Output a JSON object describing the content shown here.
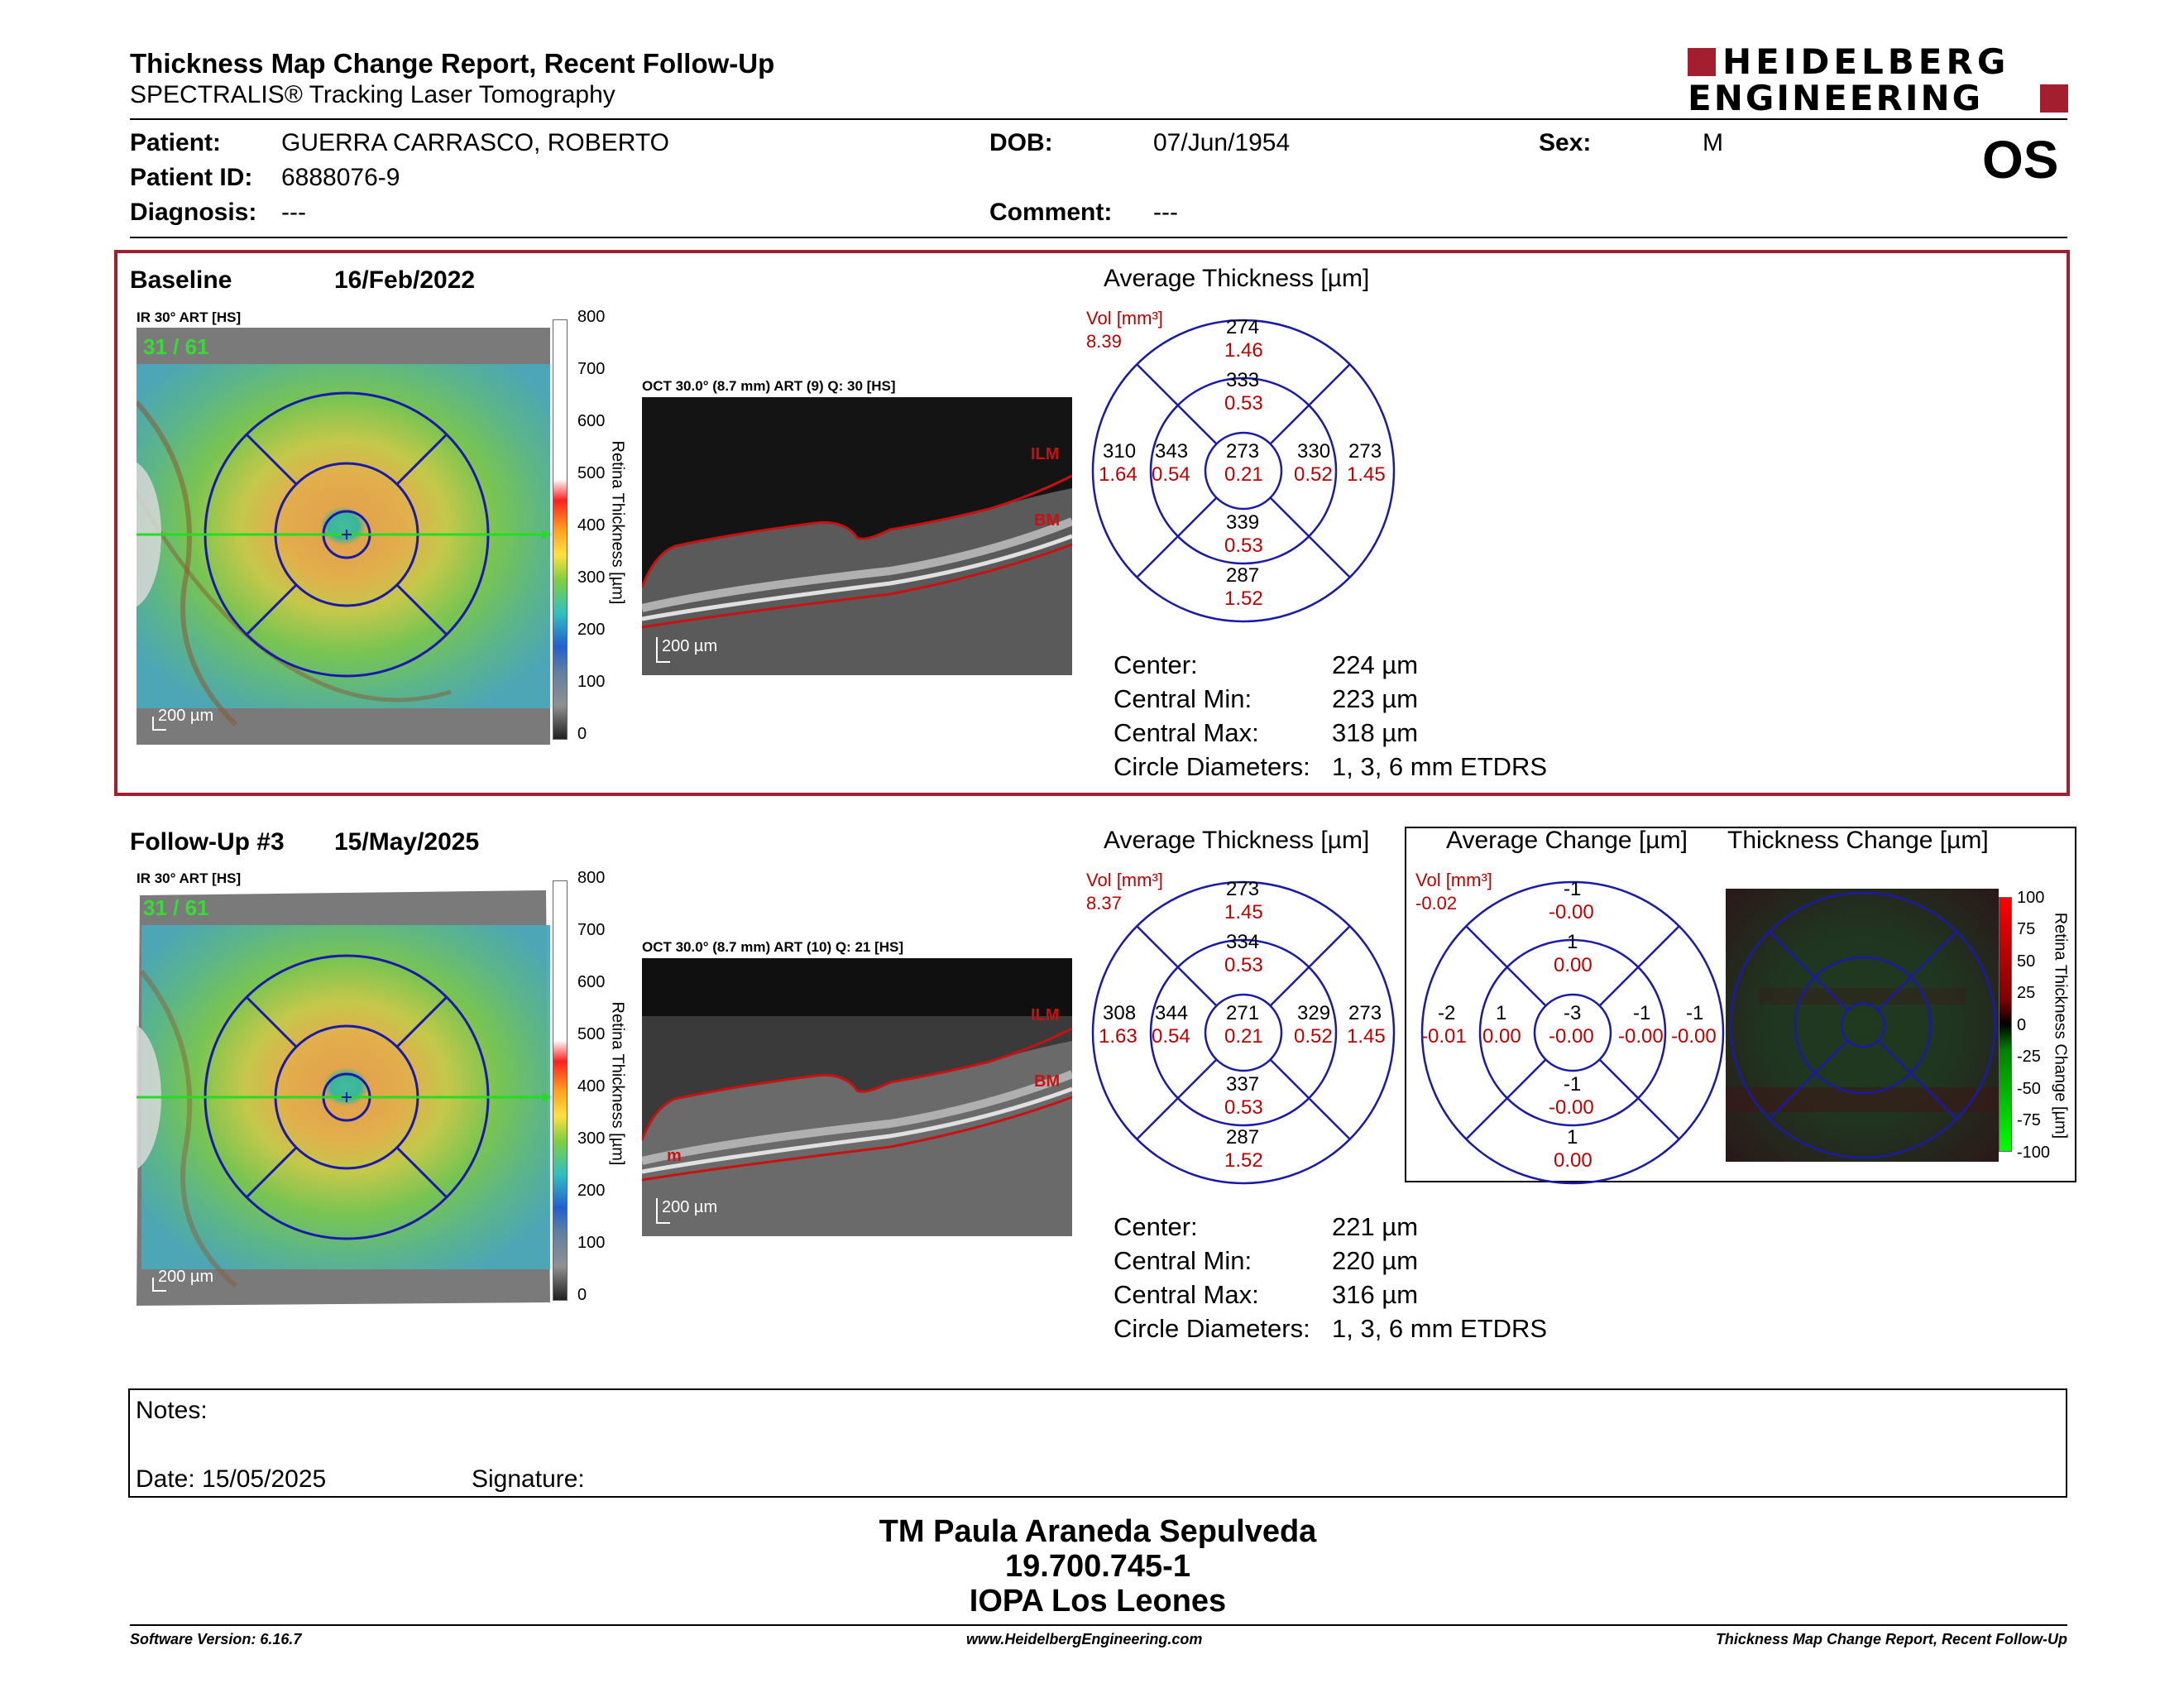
{
  "header": {
    "title": "Thickness Map Change Report, Recent Follow-Up",
    "subtitle": "SPECTRALIS® Tracking Laser Tomography",
    "logo_line1": "HEIDELBERG",
    "logo_line2": "ENGINEERING",
    "eye": "OS"
  },
  "patient": {
    "patient_label": "Patient:",
    "patient_value": "GUERRA CARRASCO, ROBERTO",
    "id_label": "Patient ID:",
    "id_value": "6888076-9",
    "diagnosis_label": "Diagnosis:",
    "diagnosis_value": "---",
    "dob_label": "DOB:",
    "dob_value": "07/Jun/1954",
    "comment_label": "Comment:",
    "comment_value": "---",
    "sex_label": "Sex:",
    "sex_value": "M"
  },
  "colors": {
    "accent_red": "#a31f2f",
    "grid_blue": "#1a1aa8",
    "value_red": "#c00000"
  },
  "baseline": {
    "label": "Baseline",
    "date": "16/Feb/2022",
    "ir_label": "IR 30° ART [HS]",
    "ir_overlay": "31 / 61",
    "scale_label": "200 µm",
    "oct_label": "OCT 30.0° (8.7 mm) ART (9) Q: 30 [HS]",
    "oct_scale": "200 µm",
    "ilm": "ILM",
    "bm": "BM",
    "avg_title": "Average Thickness [µm]",
    "vol_label": "Vol [mm³]",
    "vol_value": "8.39",
    "sectors": {
      "outer_top": [
        "274",
        "1.46"
      ],
      "inner_top": [
        "333",
        "0.53"
      ],
      "outer_left": [
        "310",
        "1.64"
      ],
      "inner_left": [
        "343",
        "0.54"
      ],
      "center": [
        "273",
        "0.21"
      ],
      "inner_right": [
        "330",
        "0.52"
      ],
      "outer_right": [
        "273",
        "1.45"
      ],
      "inner_bottom": [
        "339",
        "0.53"
      ],
      "outer_bottom": [
        "287",
        "1.52"
      ]
    },
    "stats": [
      {
        "label": "Center:",
        "value": "224 µm"
      },
      {
        "label": "Central Min:",
        "value": "223 µm"
      },
      {
        "label": "Central Max:",
        "value": "318 µm"
      },
      {
        "label": "Circle Diameters:",
        "value": "1, 3, 6 mm ETDRS"
      }
    ]
  },
  "followup": {
    "label": "Follow-Up #3",
    "date": "15/May/2025",
    "ir_label": "IR 30° ART [HS]",
    "ir_overlay": "31 / 61",
    "scale_label": "200 µm",
    "oct_label": "OCT 30.0° (8.7 mm) ART (10) Q: 21 [HS]",
    "oct_scale": "200 µm",
    "ilm": "ILM",
    "bm": "BM",
    "bm_mark": "m",
    "avg_title": "Average Thickness [µm]",
    "vol_label": "Vol [mm³]",
    "vol_value": "8.37",
    "sectors": {
      "outer_top": [
        "273",
        "1.45"
      ],
      "inner_top": [
        "334",
        "0.53"
      ],
      "outer_left": [
        "308",
        "1.63"
      ],
      "inner_left": [
        "344",
        "0.54"
      ],
      "center": [
        "271",
        "0.21"
      ],
      "inner_right": [
        "329",
        "0.52"
      ],
      "outer_right": [
        "273",
        "1.45"
      ],
      "inner_bottom": [
        "337",
        "0.53"
      ],
      "outer_bottom": [
        "287",
        "1.52"
      ]
    },
    "stats": [
      {
        "label": "Center:",
        "value": "221 µm"
      },
      {
        "label": "Central Min:",
        "value": "220 µm"
      },
      {
        "label": "Central Max:",
        "value": "316 µm"
      },
      {
        "label": "Circle Diameters:",
        "value": "1, 3, 6 mm ETDRS"
      }
    ]
  },
  "change": {
    "avg_change_title": "Average Change [µm]",
    "thickness_change_title": "Thickness Change [µm]",
    "vol_label": "Vol [mm³]",
    "vol_value": "-0.02",
    "sectors": {
      "outer_top": [
        "-1",
        "-0.00"
      ],
      "inner_top": [
        "1",
        "0.00"
      ],
      "outer_left": [
        "-2",
        "-0.01"
      ],
      "inner_left": [
        "1",
        "0.00"
      ],
      "center": [
        "-3",
        "-0.00"
      ],
      "inner_right": [
        "-1",
        "-0.00"
      ],
      "outer_right": [
        "-1",
        "-0.00"
      ],
      "inner_bottom": [
        "-1",
        "-0.00"
      ],
      "outer_bottom": [
        "1",
        "0.00"
      ]
    },
    "scale_ticks": [
      "100",
      "75",
      "50",
      "25",
      "0",
      "-25",
      "-50",
      "-75",
      "-100"
    ],
    "scale_label": "Retina Thickness Change [µm]"
  },
  "thickness_scale": {
    "ticks": [
      "800",
      "700",
      "600",
      "500",
      "400",
      "300",
      "200",
      "100",
      "0"
    ],
    "label": "Retina Thickness [µm]"
  },
  "notes": {
    "notes_label": "Notes:",
    "date_label": "Date: 15/05/2025",
    "signature_label": "Signature:"
  },
  "signoff": {
    "name": "TM Paula Araneda Sepulveda",
    "id": "19.700.745-1",
    "org": "IOPA Los Leones"
  },
  "footer": {
    "version": "Software Version: 6.16.7",
    "website": "www.HeidelbergEngineering.com",
    "report": "Thickness Map Change Report, Recent Follow-Up"
  }
}
